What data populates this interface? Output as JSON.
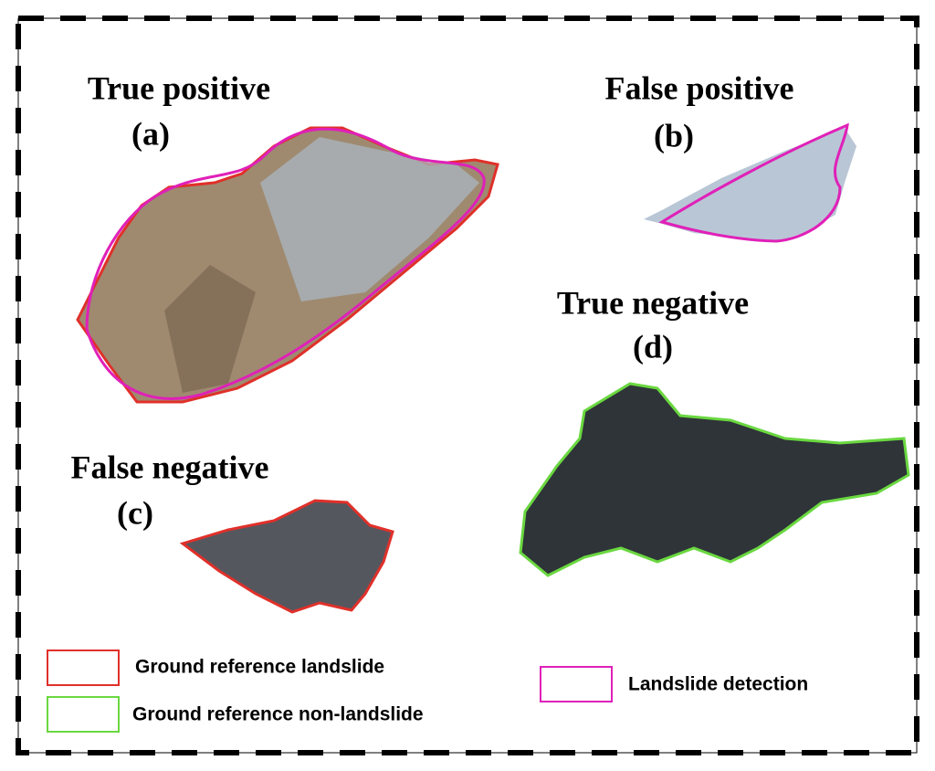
{
  "panels": [
    {
      "title": "True positive",
      "label": "(a)"
    },
    {
      "title": "False positive",
      "label": "(b)"
    },
    {
      "title": "False negative",
      "label": "(c)"
    },
    {
      "title": "True negative",
      "label": "(d)"
    }
  ],
  "legend": [
    "Ground reference landslide",
    "Ground reference non-landslide",
    "Landslide detection"
  ]
}
